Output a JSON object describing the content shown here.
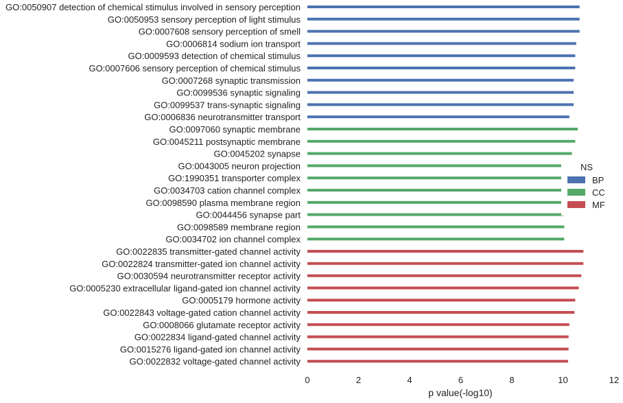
{
  "chart_data": {
    "type": "bar",
    "orientation": "horizontal",
    "xlabel": "p value(-log10)",
    "ylabel": "",
    "xlim": [
      0,
      12
    ],
    "xticks": [
      "0",
      "2",
      "4",
      "6",
      "8",
      "10",
      "12"
    ],
    "grid": false,
    "legend": {
      "title": "NS",
      "placement": "right",
      "entries": [
        {
          "label": "BP",
          "color": "#4c72b0"
        },
        {
          "label": "CC",
          "color": "#55a868"
        },
        {
          "label": "MF",
          "color": "#c44e52"
        }
      ]
    },
    "categories": [
      "GO:0050907 detection of chemical stimulus involved in sensory perception",
      "GO:0050953 sensory perception of light stimulus",
      "GO:0007608 sensory perception of smell",
      "GO:0006814 sodium ion transport",
      "GO:0009593 detection of chemical stimulus",
      "GO:0007606 sensory perception of chemical stimulus",
      "GO:0007268 synaptic transmission",
      "GO:0099536 synaptic signaling",
      "GO:0099537 trans-synaptic signaling",
      "GO:0006836 neurotransmitter transport",
      "GO:0097060 synaptic membrane",
      "GO:0045211 postsynaptic membrane",
      "GO:0045202 synapse",
      "GO:0043005 neuron projection",
      "GO:1990351 transporter complex",
      "GO:0034703 cation channel complex",
      "GO:0098590 plasma membrane region",
      "GO:0044456 synapse part",
      "GO:0098589 membrane region",
      "GO:0034702 ion channel complex",
      "GO:0022835 transmitter-gated channel activity",
      "GO:0022824 transmitter-gated ion channel activity",
      "GO:0030594 neurotransmitter receptor activity",
      "GO:0005230 extracellular ligand-gated ion channel activity",
      "GO:0005179 hormone activity",
      "GO:0022843 voltage-gated cation channel activity",
      "GO:0008066 glutamate receptor activity",
      "GO:0022834 ligand-gated channel activity",
      "GO:0015276 ligand-gated ion channel activity",
      "GO:0022832 voltage-gated channel activity"
    ],
    "groups": [
      "BP",
      "BP",
      "BP",
      "BP",
      "BP",
      "BP",
      "BP",
      "BP",
      "BP",
      "BP",
      "CC",
      "CC",
      "CC",
      "CC",
      "CC",
      "CC",
      "CC",
      "CC",
      "CC",
      "CC",
      "MF",
      "MF",
      "MF",
      "MF",
      "MF",
      "MF",
      "MF",
      "MF",
      "MF",
      "MF"
    ],
    "values": [
      10.65,
      10.65,
      10.65,
      10.52,
      10.48,
      10.48,
      10.42,
      10.42,
      10.42,
      10.25,
      10.58,
      10.48,
      10.35,
      10.28,
      10.22,
      10.22,
      10.12,
      10.05,
      10.05,
      10.05,
      10.8,
      10.8,
      10.72,
      10.62,
      10.48,
      10.45,
      10.25,
      10.22,
      10.22,
      10.2
    ]
  }
}
